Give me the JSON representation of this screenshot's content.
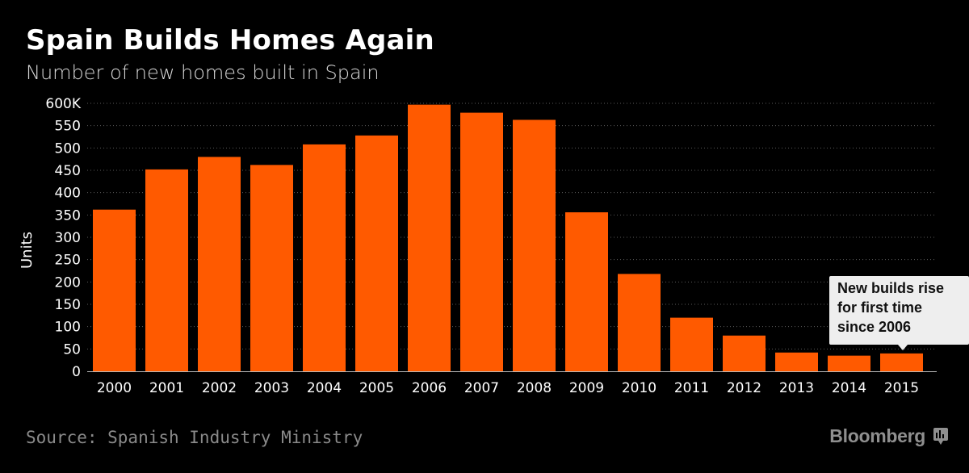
{
  "header": {
    "title": "Spain Builds Homes Again",
    "subtitle": "Number of new homes built in Spain"
  },
  "footer": {
    "source": "Source: Spanish Industry Ministry",
    "brand": "Bloomberg"
  },
  "annotation": {
    "text": "New builds rise\nfor first time\nsince 2006",
    "category": "2015"
  },
  "colors": {
    "background": "#000000",
    "bar": "#ff5a00",
    "gridline": "#5a5a5a",
    "callout_background": "#eeeeee"
  },
  "chart_data": {
    "type": "bar",
    "title": "Spain Builds Homes Again",
    "subtitle": "Number of new homes built in Spain",
    "xlabel": "",
    "ylabel": "Units",
    "categories": [
      "2000",
      "2001",
      "2002",
      "2003",
      "2004",
      "2005",
      "2006",
      "2007",
      "2008",
      "2009",
      "2010",
      "2011",
      "2012",
      "2013",
      "2014",
      "2015"
    ],
    "values": [
      362,
      452,
      480,
      462,
      508,
      528,
      597,
      579,
      563,
      356,
      218,
      120,
      80,
      42,
      35,
      40
    ],
    "unit": "thousands",
    "ylim": [
      0,
      600
    ],
    "yticks": [
      0,
      50,
      100,
      150,
      200,
      250,
      300,
      350,
      400,
      450,
      500,
      550,
      600
    ],
    "ytick_labels": [
      "0",
      "50",
      "100",
      "150",
      "200",
      "250",
      "300",
      "350",
      "400",
      "450",
      "500",
      "550",
      "600K"
    ],
    "grid": true
  }
}
